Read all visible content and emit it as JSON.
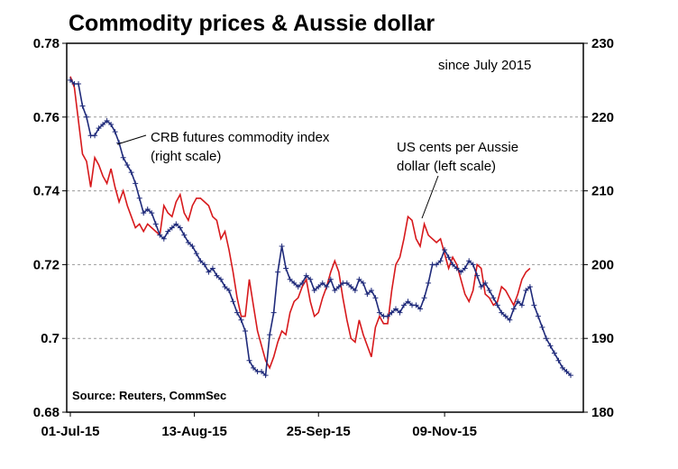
{
  "chart_data": {
    "type": "line",
    "title": "Commodity prices & Aussie dollar",
    "subtitle": "since July 2015",
    "source": "Source: Reuters, CommSec",
    "x_tick_labels": [
      "01-Jul-15",
      "13-Aug-15",
      "25-Sep-15",
      "09-Nov-15"
    ],
    "left_axis": {
      "ylim": [
        0.68,
        0.78
      ],
      "ticks": [
        "0.68",
        "0.7",
        "0.72",
        "0.74",
        "0.76",
        "0.78"
      ]
    },
    "right_axis": {
      "ylim": [
        180,
        230
      ],
      "ticks": [
        "180",
        "190",
        "200",
        "210",
        "220",
        "230"
      ]
    },
    "grid": true,
    "series": [
      {
        "name": "US cents per Aussie dollar (left scale)",
        "axis": "left",
        "color": "#d7191c",
        "x": [
          0,
          1,
          2,
          3,
          4,
          5,
          6,
          7,
          8,
          9,
          10,
          11,
          12,
          13,
          14,
          15,
          16,
          17,
          18,
          19,
          20,
          21,
          22,
          23,
          24,
          25,
          26,
          27,
          28,
          29,
          30,
          31,
          32,
          33,
          34,
          35,
          36,
          37,
          38,
          39,
          40,
          41,
          42,
          43,
          44,
          45,
          46,
          47,
          48,
          49,
          50,
          51,
          52,
          53,
          54,
          55,
          56,
          57,
          58,
          59,
          60,
          61,
          62,
          63,
          64,
          65,
          66,
          67,
          68,
          69,
          70,
          71,
          72,
          73,
          74,
          75,
          76,
          77,
          78,
          79,
          80,
          81,
          82,
          83,
          84,
          85,
          86,
          87,
          88,
          89,
          90,
          91,
          92,
          93,
          94,
          95,
          96,
          97,
          98,
          99,
          100,
          101,
          102,
          103,
          104,
          105,
          106,
          107,
          108,
          109,
          110,
          111,
          112,
          113
        ],
        "values": [
          0.771,
          0.768,
          0.759,
          0.75,
          0.748,
          0.741,
          0.749,
          0.747,
          0.744,
          0.742,
          0.746,
          0.741,
          0.737,
          0.74,
          0.736,
          0.733,
          0.73,
          0.731,
          0.729,
          0.731,
          0.73,
          0.729,
          0.728,
          0.736,
          0.734,
          0.733,
          0.737,
          0.739,
          0.734,
          0.732,
          0.736,
          0.738,
          0.738,
          0.737,
          0.736,
          0.733,
          0.732,
          0.727,
          0.729,
          0.724,
          0.718,
          0.711,
          0.706,
          0.706,
          0.716,
          0.709,
          0.702,
          0.698,
          0.694,
          0.692,
          0.695,
          0.699,
          0.702,
          0.701,
          0.707,
          0.71,
          0.711,
          0.714,
          0.716,
          0.71,
          0.706,
          0.707,
          0.711,
          0.714,
          0.718,
          0.721,
          0.718,
          0.711,
          0.705,
          0.7,
          0.699,
          0.705,
          0.701,
          0.698,
          0.695,
          0.703,
          0.706,
          0.704,
          0.704,
          0.713,
          0.72,
          0.722,
          0.727,
          0.733,
          0.732,
          0.727,
          0.725,
          0.731,
          0.728,
          0.727,
          0.726,
          0.727,
          0.723,
          0.719,
          0.722,
          0.72,
          0.716,
          0.712,
          0.71,
          0.713,
          0.72,
          0.719,
          0.712,
          0.711,
          0.709,
          0.71,
          0.714,
          0.713,
          0.711,
          0.709,
          0.712,
          0.716,
          0.718,
          0.719
        ],
        "_comment_tail": "series continues below"
      },
      {
        "name": "CRB futures commodity index (right scale)",
        "axis": "right",
        "color": "#1f2a7a",
        "x": [
          0,
          1,
          2,
          3,
          4,
          5,
          6,
          7,
          8,
          9,
          10,
          11,
          12,
          13,
          14,
          15,
          16,
          17,
          18,
          19,
          20,
          21,
          22,
          23,
          24,
          25,
          26,
          27,
          28,
          29,
          30,
          31,
          32,
          33,
          34,
          35,
          36,
          37,
          38,
          39,
          40,
          41,
          42,
          43,
          44,
          45,
          46,
          47,
          48,
          49,
          50,
          51,
          52,
          53,
          54,
          55,
          56,
          57,
          58,
          59,
          60,
          61,
          62,
          63,
          64,
          65,
          66,
          67,
          68,
          69,
          70,
          71,
          72,
          73,
          74,
          75,
          76,
          77,
          78,
          79,
          80,
          81,
          82,
          83,
          84,
          85,
          86,
          87,
          88,
          89,
          90,
          91,
          92,
          93,
          94,
          95,
          96,
          97,
          98,
          99,
          100,
          101,
          102,
          103,
          104,
          105,
          106,
          107,
          108,
          109,
          110,
          111,
          112,
          113,
          114,
          115,
          116,
          117,
          118,
          119,
          120,
          121,
          122,
          123
        ],
        "values": [
          225.0,
          224.5,
          224.5,
          221.5,
          220.0,
          217.5,
          217.5,
          218.5,
          219.0,
          219.5,
          219.0,
          218.0,
          216.5,
          214.5,
          213.5,
          212.5,
          211.0,
          209.0,
          207.0,
          207.5,
          207.0,
          205.5,
          204.0,
          203.5,
          204.5,
          205.0,
          205.5,
          205.0,
          204.0,
          203.0,
          202.5,
          201.5,
          200.5,
          200.0,
          199.0,
          199.5,
          198.5,
          198.0,
          197.0,
          196.5,
          195.0,
          193.5,
          192.5,
          191.0,
          187.0,
          186.0,
          185.5,
          185.5,
          185.0,
          190.5,
          193.5,
          199.0,
          202.5,
          199.5,
          198.0,
          197.5,
          197.0,
          197.5,
          198.5,
          198.0,
          196.5,
          197.0,
          197.5,
          197.0,
          198.0,
          196.5,
          197.0,
          197.5,
          197.5,
          197.0,
          196.5,
          198.0,
          197.5,
          196.0,
          196.5,
          195.5,
          193.5,
          193.0,
          193.0,
          193.5,
          194.0,
          193.5,
          194.5,
          195.0,
          194.5,
          194.5,
          194.0,
          195.5,
          197.5,
          200.0,
          200.0,
          200.5,
          202.0,
          201.0,
          200.0,
          199.5,
          199.0,
          199.5,
          200.5,
          200.0,
          198.5,
          197.0,
          197.5,
          196.5,
          195.5,
          194.5,
          193.5,
          193.0,
          192.5,
          194.0,
          195.0,
          194.5,
          196.5,
          197.0,
          194.5,
          193.0,
          191.5,
          190.0,
          189.0,
          188.0,
          187.0,
          186.0,
          185.5,
          185.0
        ]
      }
    ]
  }
}
